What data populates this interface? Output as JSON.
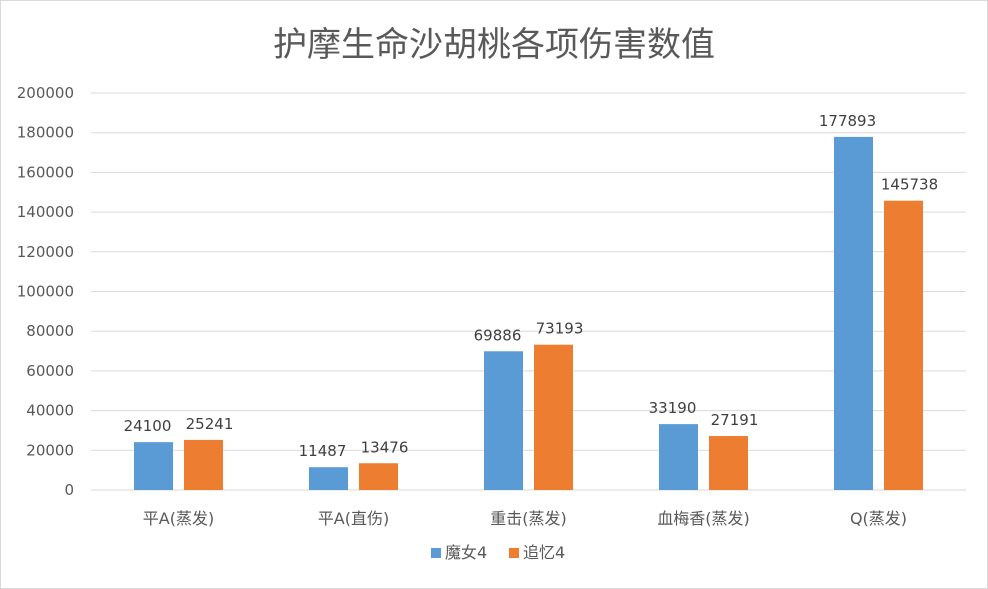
{
  "chart_data": {
    "type": "bar",
    "title": "护摩生命沙胡桃各项伤害数值",
    "categories": [
      "平A(蒸发)",
      "平A(直伤)",
      "重击(蒸发)",
      "血梅香(蒸发)",
      "Q(蒸发)"
    ],
    "series": [
      {
        "name": "魔女4",
        "values": [
          24100,
          11487,
          69886,
          33190,
          177893
        ],
        "color": "#5b9bd5"
      },
      {
        "name": "追忆4",
        "values": [
          25241,
          13476,
          73193,
          27191,
          145738
        ],
        "color": "#ed7d31"
      }
    ],
    "yticks": [
      "0",
      "20000",
      "40000",
      "60000",
      "80000",
      "100000",
      "120000",
      "140000",
      "160000",
      "180000",
      "200000"
    ],
    "ylim": [
      0,
      200000
    ],
    "grid": true,
    "legend_position": "bottom",
    "xlabel": "",
    "ylabel": ""
  }
}
